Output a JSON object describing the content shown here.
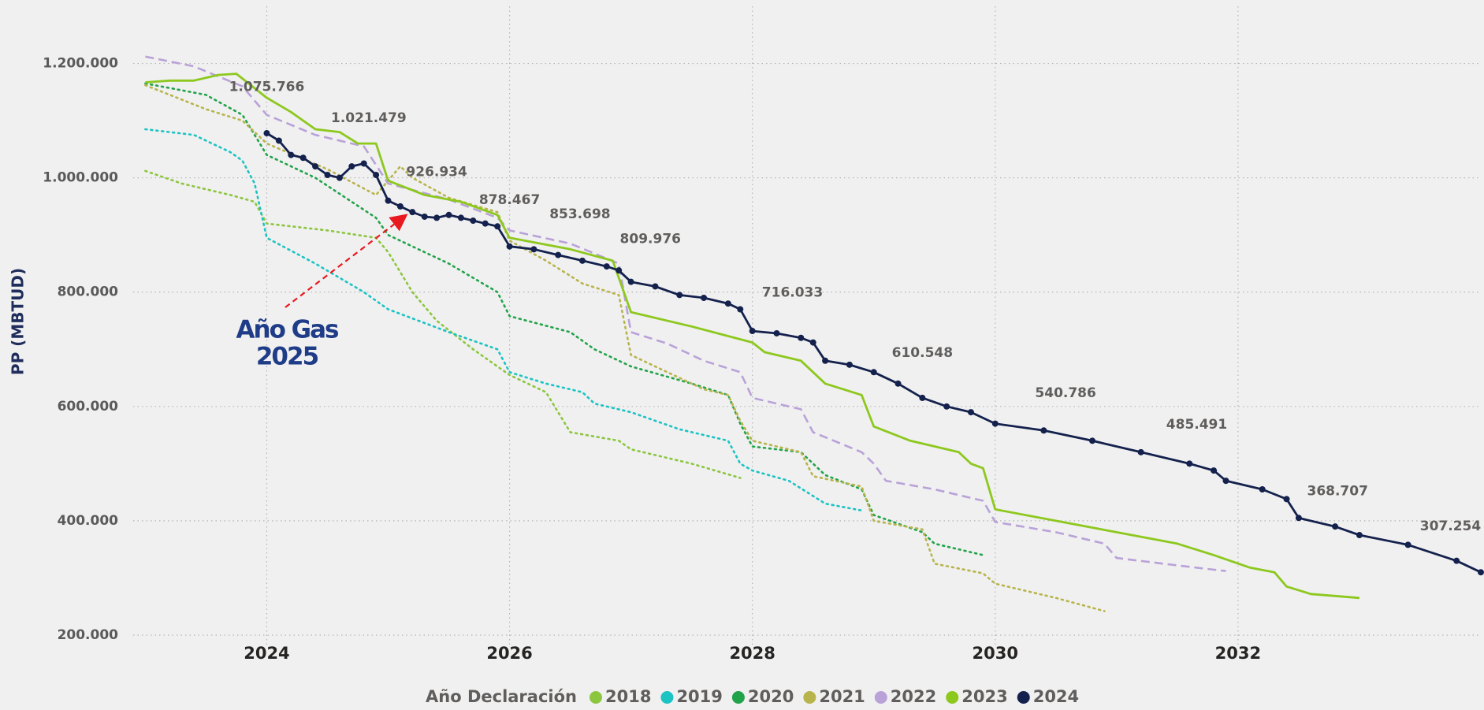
{
  "chart_data": {
    "type": "line",
    "y_label": "PP (MBTUD)",
    "annotation": [
      "Año Gas",
      "2025"
    ],
    "legend_title": "Año Declaración",
    "legend": "bottom",
    "grid": true,
    "xlim": [
      2022.9,
      2034.0
    ],
    "xticks": [
      2024,
      2026,
      2028,
      2030,
      2032
    ],
    "ylim": [
      180000,
      1300000
    ],
    "yticks": [
      {
        "value": 200000,
        "label": "200.000"
      },
      {
        "value": 400000,
        "label": "400.000"
      },
      {
        "value": 600000,
        "label": "600.000"
      },
      {
        "value": 800000,
        "label": "800.000"
      },
      {
        "value": 1000000,
        "label": "1.000.000"
      },
      {
        "value": 1200000,
        "label": "1.200.000"
      }
    ],
    "series": [
      {
        "name": "2018",
        "color": "#8cc63f",
        "style": "dotted",
        "x": [
          2023.0,
          2023.3,
          2023.7,
          2023.9,
          2024.0,
          2024.5,
          2024.9,
          2025.0,
          2025.2,
          2025.4,
          2025.7,
          2026.0,
          2026.3,
          2026.5,
          2026.9,
          2027.0,
          2027.5,
          2027.9
        ],
        "values": [
          1012000,
          990000,
          970000,
          958000,
          920000,
          908000,
          895000,
          870000,
          800000,
          750000,
          700000,
          655000,
          625000,
          555000,
          540000,
          525000,
          500000,
          475000
        ]
      },
      {
        "name": "2019",
        "color": "#1cc3c3",
        "style": "dotted",
        "x": [
          2023.0,
          2023.4,
          2023.7,
          2023.8,
          2023.9,
          2024.0,
          2024.4,
          2024.8,
          2025.0,
          2025.5,
          2025.9,
          2026.0,
          2026.3,
          2026.6,
          2026.7,
          2027.0,
          2027.4,
          2027.8,
          2027.9,
          2028.0,
          2028.3,
          2028.6,
          2028.9
        ],
        "values": [
          1085000,
          1075000,
          1045000,
          1030000,
          990000,
          895000,
          850000,
          800000,
          770000,
          730000,
          700000,
          660000,
          640000,
          625000,
          605000,
          590000,
          560000,
          540000,
          500000,
          488000,
          470000,
          430000,
          418000
        ]
      },
      {
        "name": "2020",
        "color": "#22a34a",
        "style": "dotted",
        "x": [
          2023.0,
          2023.5,
          2023.8,
          2024.0,
          2024.4,
          2024.9,
          2025.0,
          2025.5,
          2025.9,
          2026.0,
          2026.5,
          2026.7,
          2027.0,
          2027.5,
          2027.8,
          2027.9,
          2028.0,
          2028.4,
          2028.6,
          2028.9,
          2029.0,
          2029.4,
          2029.5,
          2029.9
        ],
        "values": [
          1165000,
          1145000,
          1110000,
          1040000,
          1000000,
          930000,
          900000,
          850000,
          800000,
          758000,
          730000,
          700000,
          670000,
          640000,
          620000,
          570000,
          530000,
          520000,
          480000,
          455000,
          410000,
          380000,
          360000,
          340000
        ]
      },
      {
        "name": "2021",
        "color": "#b8b44c",
        "style": "dotted",
        "x": [
          2023.0,
          2023.5,
          2023.8,
          2024.0,
          2024.5,
          2024.9,
          2025.1,
          2025.2,
          2025.5,
          2025.9,
          2026.0,
          2026.3,
          2026.6,
          2026.9,
          2027.0,
          2027.3,
          2027.6,
          2027.8,
          2027.9,
          2028.0,
          2028.4,
          2028.5,
          2028.9,
          2029.0,
          2029.4,
          2029.5,
          2029.9,
          2030.0,
          2030.5,
          2030.9
        ],
        "values": [
          1162000,
          1120000,
          1100000,
          1060000,
          1015000,
          970000,
          1020000,
          1000000,
          965000,
          940000,
          890000,
          855000,
          815000,
          795000,
          690000,
          660000,
          630000,
          620000,
          575000,
          540000,
          520000,
          478000,
          460000,
          400000,
          385000,
          325000,
          308000,
          290000,
          265000,
          242000
        ]
      },
      {
        "name": "2022",
        "color": "#b9a2d8",
        "style": "dashed",
        "x": [
          2023.0,
          2023.4,
          2023.8,
          2024.0,
          2024.4,
          2024.8,
          2025.0,
          2025.5,
          2025.9,
          2026.0,
          2026.5,
          2026.9,
          2027.0,
          2027.3,
          2027.6,
          2027.9,
          2028.0,
          2028.4,
          2028.5,
          2028.9,
          2029.0,
          2029.1,
          2029.5,
          2029.9,
          2030.0,
          2030.5,
          2030.9,
          2031.0,
          2031.5,
          2031.9
        ],
        "values": [
          1212000,
          1195000,
          1160000,
          1110000,
          1075000,
          1055000,
          990000,
          962000,
          930000,
          908000,
          885000,
          850000,
          730000,
          710000,
          680000,
          660000,
          615000,
          595000,
          555000,
          520000,
          500000,
          470000,
          455000,
          435000,
          398000,
          380000,
          360000,
          335000,
          322000,
          312000
        ]
      },
      {
        "name": "2023",
        "color": "#8dc81e",
        "style": "solid",
        "x": [
          2023.0,
          2023.2,
          2023.4,
          2023.6,
          2023.75,
          2024.0,
          2024.2,
          2024.4,
          2024.6,
          2024.75,
          2024.9,
          2025.0,
          2025.3,
          2025.6,
          2025.9,
          2026.0,
          2026.5,
          2026.85,
          2027.0,
          2027.5,
          2028.0,
          2028.1,
          2028.4,
          2028.6,
          2028.9,
          2029.0,
          2029.3,
          2029.7,
          2029.8,
          2029.9,
          2030.0,
          2030.5,
          2031.0,
          2031.5,
          2031.8,
          2032.1,
          2032.3,
          2032.4,
          2032.6,
          2033.0
        ],
        "values": [
          1167000,
          1170000,
          1170000,
          1180000,
          1182000,
          1140000,
          1115000,
          1085000,
          1080000,
          1060000,
          1060000,
          995000,
          970000,
          958000,
          935000,
          895000,
          875000,
          855000,
          765000,
          740000,
          712000,
          695000,
          680000,
          640000,
          620000,
          565000,
          540000,
          520000,
          500000,
          492000,
          420000,
          400000,
          380000,
          360000,
          340000,
          318000,
          310000,
          285000,
          272000,
          265000
        ]
      },
      {
        "name": "2024",
        "color": "#14214d",
        "style": "solid",
        "markers": true,
        "x": [
          2024.0,
          2024.1,
          2024.2,
          2024.3,
          2024.4,
          2024.5,
          2024.6,
          2024.7,
          2024.8,
          2024.9,
          2025.0,
          2025.1,
          2025.2,
          2025.3,
          2025.4,
          2025.5,
          2025.6,
          2025.7,
          2025.8,
          2025.9,
          2026.0,
          2026.2,
          2026.4,
          2026.6,
          2026.8,
          2026.9,
          2027.0,
          2027.2,
          2027.4,
          2027.6,
          2027.8,
          2027.9,
          2028.0,
          2028.2,
          2028.4,
          2028.5,
          2028.6,
          2028.8,
          2029.0,
          2029.2,
          2029.4,
          2029.6,
          2029.8,
          2030.0,
          2030.4,
          2030.8,
          2031.2,
          2031.6,
          2031.8,
          2031.9,
          2032.2,
          2032.4,
          2032.5,
          2032.8,
          2033.0,
          2033.4,
          2033.8,
          2034.0
        ],
        "values": [
          1078000,
          1065000,
          1040000,
          1035000,
          1020000,
          1005000,
          1000000,
          1020000,
          1025000,
          1005000,
          960000,
          950000,
          940000,
          932000,
          930000,
          935000,
          930000,
          925000,
          920000,
          915000,
          880000,
          875000,
          865000,
          855000,
          845000,
          838000,
          818000,
          810000,
          795000,
          790000,
          780000,
          770000,
          732000,
          728000,
          720000,
          712000,
          680000,
          673000,
          660000,
          640000,
          615000,
          600000,
          590000,
          570000,
          558000,
          540000,
          520000,
          500000,
          488000,
          470000,
          455000,
          438000,
          405000,
          390000,
          375000,
          358000,
          330000,
          310000
        ]
      }
    ],
    "data_labels": {
      "x": [
        2024.0,
        2024.84,
        2025.4,
        2026.0,
        2026.58,
        2027.16,
        2028.33,
        2029.4,
        2030.58,
        2031.66,
        2032.82,
        2033.75
      ],
      "values": [
        1075766,
        1021479,
        926934,
        878467,
        853698,
        809976,
        716033,
        610548,
        540786,
        485491,
        368707,
        307254
      ],
      "value_labels": [
        "1.075.766",
        "1.021.479",
        "926.934",
        "878.467",
        "853.698",
        "809.976",
        "716.033",
        "610.548",
        "540.786",
        "485.491",
        "368.707",
        "307.254"
      ]
    }
  }
}
